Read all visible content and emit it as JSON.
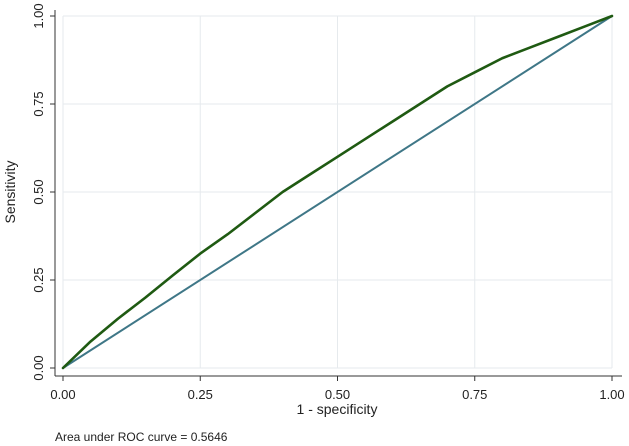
{
  "chart_data": {
    "type": "line",
    "xlabel": "1 - specificity",
    "ylabel": "Sensitivity",
    "xlim": [
      0,
      1
    ],
    "ylim": [
      0,
      1
    ],
    "xticks": [
      "0.00",
      "0.25",
      "0.50",
      "0.75",
      "1.00"
    ],
    "yticks": [
      "0.00",
      "0.25",
      "0.50",
      "0.75",
      "1.00"
    ],
    "grid": true,
    "series": [
      {
        "color": "#1f5a12",
        "x": [
          0,
          0.02,
          0.05,
          0.1,
          0.15,
          0.2,
          0.25,
          0.3,
          0.35,
          0.4,
          0.45,
          0.5,
          0.55,
          0.6,
          0.65,
          0.7,
          0.75,
          0.8,
          0.85,
          0.9,
          0.95,
          1.0
        ],
        "y": [
          0,
          0.03,
          0.075,
          0.14,
          0.2,
          0.263,
          0.325,
          0.38,
          0.44,
          0.5,
          0.55,
          0.6,
          0.65,
          0.7,
          0.75,
          0.8,
          0.84,
          0.88,
          0.91,
          0.94,
          0.97,
          1.0
        ]
      },
      {
        "color": "#3f7787",
        "x": [
          0,
          1
        ],
        "y": [
          0,
          1
        ]
      }
    ],
    "annotation": "Area under ROC curve = 0.5646"
  }
}
